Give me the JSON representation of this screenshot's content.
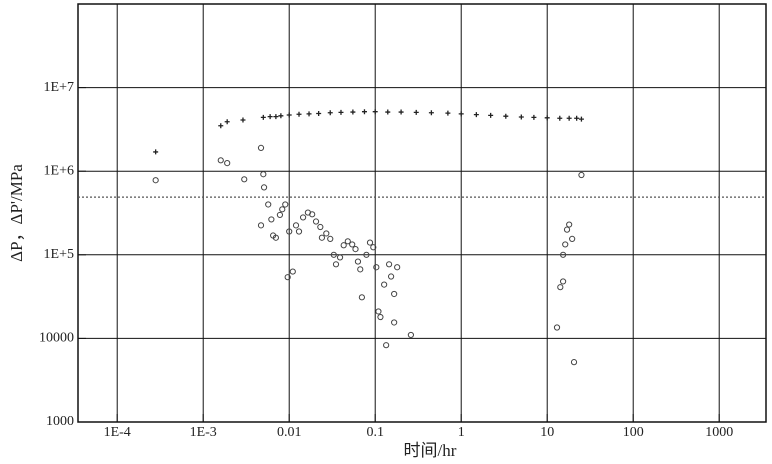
{
  "chart_data": {
    "type": "scatter",
    "xlabel": "时间/hr",
    "ylabel": "ΔP，ΔP'/MPa",
    "xscale": "log",
    "yscale": "log",
    "grid": true,
    "xlim": [
      3.5e-05,
      3500
    ],
    "ylim": [
      1000,
      100000000
    ],
    "xticks": [
      {
        "value": 0.0001,
        "label": "1E-4"
      },
      {
        "value": 0.001,
        "label": "1E-3"
      },
      0.01,
      0.1,
      1,
      10,
      100,
      1000
    ],
    "yticks": [
      1000,
      10000,
      {
        "value": 100000,
        "label": "1E+5"
      },
      {
        "value": 1000000,
        "label": "1E+6"
      },
      {
        "value": 10000000,
        "label": "1E+7"
      }
    ],
    "hline": {
      "value": 490000,
      "color": "#555555",
      "style": "dotted"
    },
    "series": [
      {
        "color": "#222222",
        "marker": "plus",
        "x": [
          0.00028,
          0.0016,
          0.0019,
          0.0029,
          0.005,
          0.006,
          0.007,
          0.008,
          0.01,
          0.013,
          0.017,
          0.022,
          0.03,
          0.04,
          0.055,
          0.075,
          0.1,
          0.14,
          0.2,
          0.3,
          0.45,
          0.7,
          1,
          1.5,
          2.2,
          3.3,
          5,
          7,
          10,
          14,
          18,
          22,
          25
        ],
        "values": [
          1700000,
          3500000,
          3900000,
          4100000,
          4400000,
          4500000,
          4500000,
          4600000,
          4700000,
          4800000,
          4850000,
          4900000,
          5000000,
          5050000,
          5100000,
          5150000,
          5150000,
          5100000,
          5100000,
          5050000,
          5000000,
          4950000,
          4850000,
          4750000,
          4650000,
          4550000,
          4450000,
          4400000,
          4350000,
          4300000,
          4300000,
          4300000,
          4200000
        ]
      },
      {
        "color": "#444444",
        "marker": "circle",
        "x": [
          0.00028,
          0.0016,
          0.0019,
          0.003,
          0.0047,
          0.005,
          0.0051,
          0.0057,
          0.0062,
          0.0047,
          0.0065,
          0.007,
          0.0078,
          0.0083,
          0.009,
          0.0096,
          0.011,
          0.01,
          0.012,
          0.013,
          0.0145,
          0.0165,
          0.0185,
          0.0205,
          0.023,
          0.024,
          0.027,
          0.03,
          0.033,
          0.035,
          0.039,
          0.043,
          0.048,
          0.054,
          0.059,
          0.063,
          0.067,
          0.07,
          0.079,
          0.087,
          0.095,
          0.103,
          0.109,
          0.115,
          0.127,
          0.134,
          0.145,
          0.153,
          0.166,
          0.18,
          0.166,
          0.26,
          13,
          14.2,
          15.3,
          16.2,
          17,
          18,
          19.5,
          20.5,
          25,
          15.3
        ],
        "values": [
          780000,
          1350000,
          1250000,
          800000,
          1900000,
          920000,
          640000,
          400000,
          265000,
          225000,
          170000,
          160000,
          300000,
          350000,
          400000,
          54000,
          63000,
          190000,
          225000,
          190000,
          280000,
          320000,
          305000,
          250000,
          215000,
          160000,
          180000,
          155000,
          100000,
          77000,
          93000,
          130000,
          145000,
          133000,
          117000,
          83000,
          67000,
          31000,
          100000,
          140000,
          123000,
          71000,
          21000,
          18000,
          44000,
          8300,
          77000,
          55000,
          34000,
          71000,
          15500,
          11000,
          13500,
          41000,
          48000,
          133000,
          200000,
          230000,
          155000,
          5200,
          900000,
          100000
        ]
      }
    ]
  }
}
